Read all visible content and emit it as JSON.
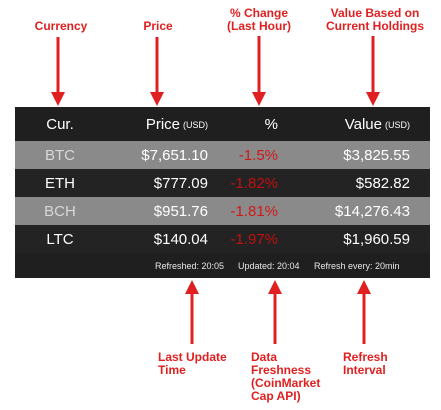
{
  "callouts": {
    "currency": "Currency",
    "price": "Price",
    "pct_line1": "% Change",
    "pct_line2": "(Last Hour)",
    "value_line1": "Value Based on",
    "value_line2": "Current Holdings",
    "last_update_line1": "Last Update",
    "last_update_line2": "Time",
    "freshness_line1": "Data",
    "freshness_line2": "Freshness",
    "freshness_line3": "(CoinMarket",
    "freshness_line4": "Cap API)",
    "refresh_line1": "Refresh",
    "refresh_line2": "Interval"
  },
  "table": {
    "headers": {
      "currency": "Cur.",
      "price": "Price",
      "price_unit": "(USD)",
      "pct": "%",
      "value": "Value",
      "value_unit": "(USD)"
    },
    "rows": [
      {
        "currency": "BTC",
        "price": "$7,651.10",
        "pct": "-1.5%",
        "value": "$3,825.55"
      },
      {
        "currency": "ETH",
        "price": "$777.09",
        "pct": "-1.82%",
        "value": "$582.82"
      },
      {
        "currency": "BCH",
        "price": "$951.76",
        "pct": "-1.81%",
        "value": "$14,276.43"
      },
      {
        "currency": "LTC",
        "price": "$140.04",
        "pct": "-1.97%",
        "value": "$1,960.59"
      }
    ],
    "footer": {
      "refreshed": "Refreshed: 20:05",
      "updated": "Updated: 20:04",
      "refresh_every": "Refresh every: 20min"
    }
  },
  "colors": {
    "callout": "#e02020",
    "table_bg": "#1f1f1f",
    "row_highlight": "#8a8a8a",
    "negative": "#d01818"
  }
}
